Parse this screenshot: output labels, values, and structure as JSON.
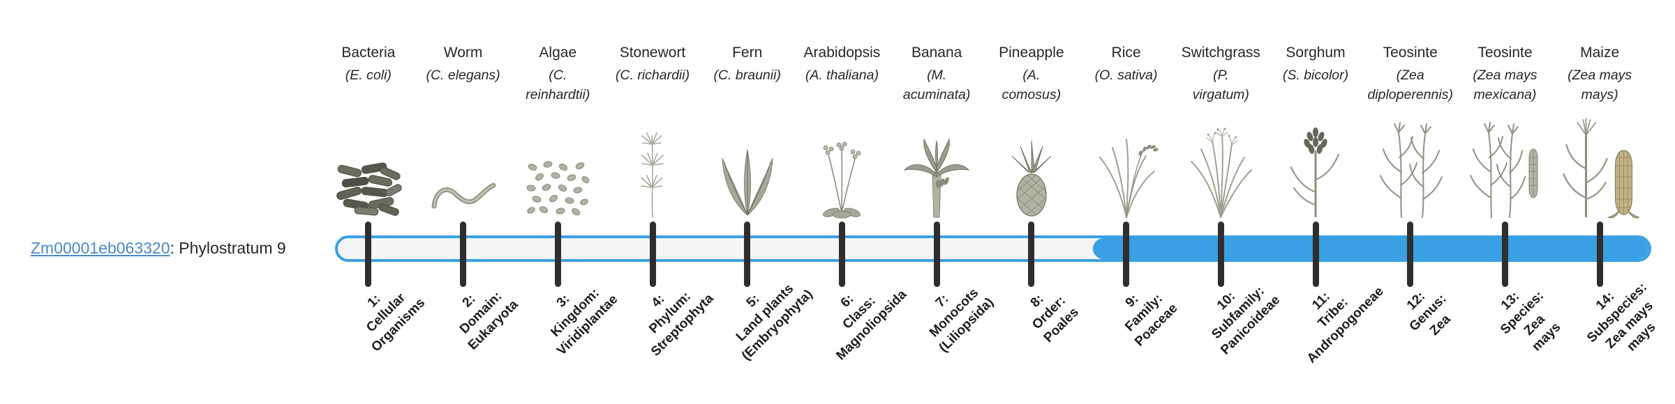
{
  "figure": {
    "gene_link": "Zm00001eb063320",
    "gene_suffix": ": Phylostratum 9",
    "phylostratum": 9,
    "total_strata": 14
  },
  "colors": {
    "bar_fill": "#3aa0e4",
    "bar_outline": "#3aa0e4",
    "bar_track": "#f4f5f7",
    "tick": "#2e2e2e",
    "link": "#4a88c7",
    "text": "#262626"
  },
  "organisms": [
    {
      "common_name": "Bacteria",
      "sci_name": "(E. coli)",
      "icon": "bacteria",
      "stratum_label": "1:\nCellular\nOrganisms"
    },
    {
      "common_name": "Worm",
      "sci_name": "(C. elegans)",
      "icon": "worm",
      "stratum_label": "2:\nDomain:\nEukaryota"
    },
    {
      "common_name": "Algae",
      "sci_name": "(C.\nreinhardtii)",
      "icon": "algae",
      "stratum_label": "3:\nKingdom:\nViridiplantae"
    },
    {
      "common_name": "Stonewort",
      "sci_name": "(C. richardii)",
      "icon": "stonewort",
      "stratum_label": "4:\nPhylum:\nStreptophyta"
    },
    {
      "common_name": "Fern",
      "sci_name": "(C. braunii)",
      "icon": "fern",
      "stratum_label": "5:\nLand plants\n(Embryophyta)"
    },
    {
      "common_name": "Arabidopsis",
      "sci_name": "(A. thaliana)",
      "icon": "arabidopsis",
      "stratum_label": "6:\nClass:\nMagnoliopsida"
    },
    {
      "common_name": "Banana",
      "sci_name": "(M.\nacuminata)",
      "icon": "banana",
      "stratum_label": "7:\nMonocots\n(Liliopsida)"
    },
    {
      "common_name": "Pineapple",
      "sci_name": "(A.\ncomosus)",
      "icon": "pineapple",
      "stratum_label": "8:\nOrder:\nPoales"
    },
    {
      "common_name": "Rice",
      "sci_name": "(O. sativa)",
      "icon": "rice",
      "stratum_label": "9:\nFamily:\nPoaceae"
    },
    {
      "common_name": "Switchgrass",
      "sci_name": "(P.\nvirgatum)",
      "icon": "switchgrass",
      "stratum_label": "10:\nSubfamily:\nPanicoideae"
    },
    {
      "common_name": "Sorghum",
      "sci_name": "(S. bicolor)",
      "icon": "sorghum",
      "stratum_label": "11:\nTribe:\nAndropogoneae"
    },
    {
      "common_name": "Teosinte",
      "sci_name": "(Zea\ndiploperennis)",
      "icon": "teosinte",
      "stratum_label": "12:\nGenus:\nZea"
    },
    {
      "common_name": "Teosinte",
      "sci_name": "(Zea mays\nmexicana)",
      "icon": "teosinte-ear",
      "stratum_label": "13:\nSpecies:\nZea\nmays"
    },
    {
      "common_name": "Maize",
      "sci_name": "(Zea mays\nmays)",
      "icon": "maize",
      "stratum_label": "14:\nSubspecies:\nZea mays\nmays"
    }
  ]
}
